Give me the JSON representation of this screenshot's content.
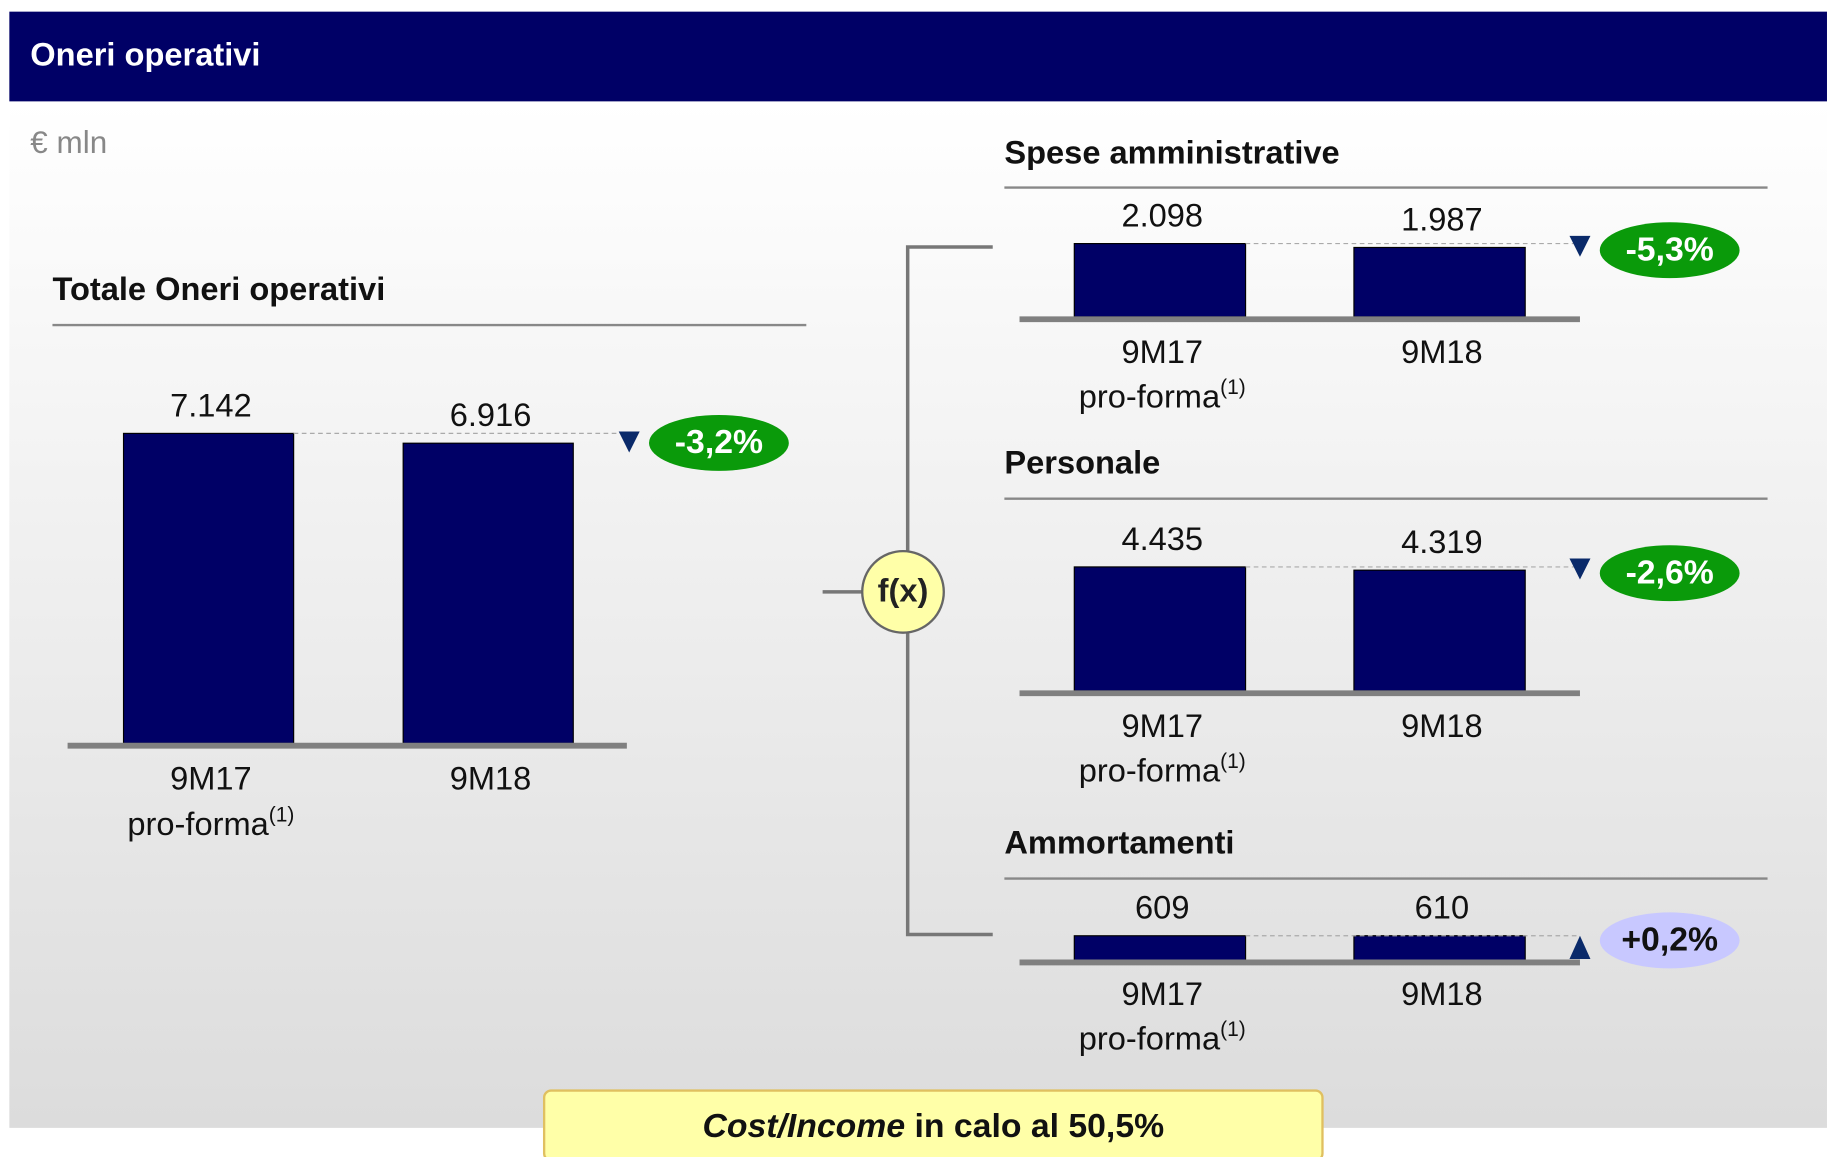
{
  "header": {
    "title": "Oneri operativi"
  },
  "unit": "€ mln",
  "connector": "f(x)",
  "footer": {
    "emphasis": "Cost/Income",
    "text": "in calo al 50,5%"
  },
  "chart_data": [
    {
      "type": "bar",
      "title": "Totale Oneri operativi",
      "categories": [
        "9M17",
        "9M18"
      ],
      "category_sublabels": [
        "pro-forma",
        null
      ],
      "category_notes": [
        "(1)",
        null
      ],
      "values": [
        7142,
        6916
      ],
      "value_labels": [
        "7.142",
        "6.916"
      ],
      "color": "#000066",
      "ylim": [
        0,
        8000
      ],
      "change": -3.2,
      "change_label": "-3,2%",
      "change_color": "#0a9a0a"
    },
    {
      "type": "bar",
      "title": "Spese amministrative",
      "categories": [
        "9M17",
        "9M18"
      ],
      "category_sublabels": [
        "pro-forma",
        null
      ],
      "category_notes": [
        "(1)",
        null
      ],
      "values": [
        2098,
        1987
      ],
      "value_labels": [
        "2.098",
        "1.987"
      ],
      "color": "#000066",
      "ylim": [
        0,
        4000
      ],
      "change": -5.3,
      "change_label": "-5,3%",
      "change_color": "#0a9a0a"
    },
    {
      "type": "bar",
      "title": "Personale",
      "categories": [
        "9M17",
        "9M18"
      ],
      "category_sublabels": [
        "pro-forma",
        null
      ],
      "category_notes": [
        "(1)",
        null
      ],
      "values": [
        4435,
        4319
      ],
      "value_labels": [
        "4.435",
        "4.319"
      ],
      "color": "#000066",
      "ylim": [
        0,
        5000
      ],
      "change": -2.6,
      "change_label": "-2,6%",
      "change_color": "#0a9a0a"
    },
    {
      "type": "bar",
      "title": "Ammortamenti",
      "categories": [
        "9M17",
        "9M18"
      ],
      "category_sublabels": [
        "pro-forma",
        null
      ],
      "category_notes": [
        "(1)",
        null
      ],
      "values": [
        609,
        610
      ],
      "value_labels": [
        "609",
        "610"
      ],
      "color": "#000066",
      "ylim": [
        0,
        3500
      ],
      "change": 0.2,
      "change_label": "+0,2%",
      "change_color": "#c8c8ff"
    }
  ]
}
